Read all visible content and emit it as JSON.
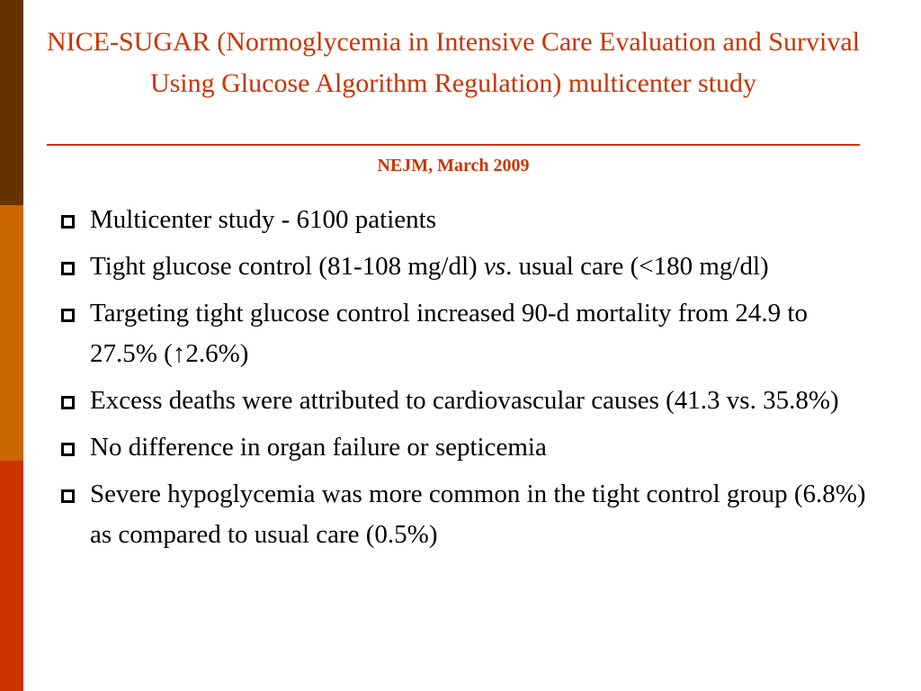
{
  "slide": {
    "title": "NICE-SUGAR (Normoglycemia in Intensive Care Evaluation and Survival Using Glucose Algorithm Regulation) multicenter study",
    "subtitle": "NEJM, March 2009",
    "bullet_icon": "hollow-square-icon",
    "colors": {
      "title": "#cc3300",
      "sidebar": [
        "#663300",
        "#cc6600",
        "#cc3300"
      ]
    },
    "bullets": [
      {
        "text": "Multicenter study - 6100 patients"
      },
      {
        "text_before": "Tight glucose control (81-108 mg/dl) ",
        "emphasis": "vs",
        "text_after": ". usual care (<180 mg/dl)"
      },
      {
        "text": "Targeting tight glucose control increased 90-d mortality from 24.9 to 27.5% (↑2.6%)"
      },
      {
        "text": "Excess deaths were attributed to cardiovascular causes (41.3 vs. 35.8%)"
      },
      {
        "text": "No difference in organ failure or septicemia"
      },
      {
        "text": "Severe hypoglycemia was more common in the tight control group (6.8%) as compared to usual care (0.5%)"
      }
    ]
  }
}
